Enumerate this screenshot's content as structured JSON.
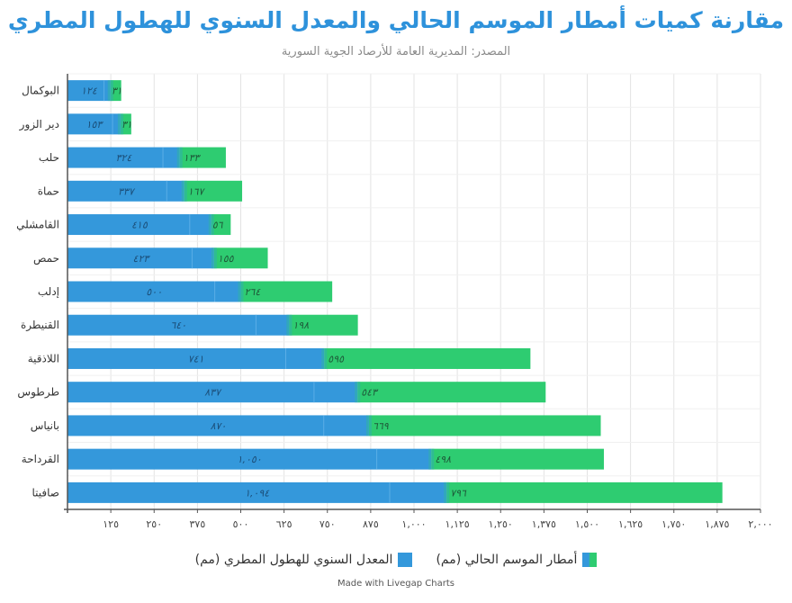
{
  "header": {
    "title": "مقارنة كميات أمطار الموسم الحالي والمعدل السنوي للهطول المطري",
    "subtitle": "المصدر: المديرية العامة للأرصاد الجوية السورية"
  },
  "legend": {
    "current_label": "أمطار الموسم الحالي (مم)",
    "average_label": "المعدل السنوي للهطول المطري (مم)"
  },
  "credit": "Made with Livegap Charts",
  "colors": {
    "current": "#2ecc71",
    "average": "#3498db",
    "title": "#2e92db",
    "grid": "#e3e3e3"
  },
  "chart_data": {
    "type": "bar",
    "orientation": "horizontal",
    "stacked": true,
    "categories": [
      "البوكمال",
      "دير الزور",
      "حلب",
      "حماة",
      "القامشلي",
      "حمص",
      "إدلب",
      "القنيطرة",
      "اللاذقية",
      "طرطوس",
      "بانياس",
      "القرداحة",
      "صافيتا"
    ],
    "series": [
      {
        "name": "المعدل السنوي للهطول المطري (مم)",
        "values": [
          124,
          153,
          324,
          337,
          415,
          423,
          500,
          640,
          741,
          837,
          870,
          1050,
          1094
        ],
        "labels": [
          "١٢٤",
          "١٥٣",
          "٣٢٤",
          "٣٣٧",
          "٤١٥",
          "٤٢٣",
          "٥٠٠",
          "٦٤٠",
          "٧٤١",
          "٨٣٧",
          "٨٧٠",
          "١,٠٥٠",
          "١,٠٩٤"
        ]
      },
      {
        "name": "أمطار الموسم الحالي (مم)",
        "values": [
          31,
          31,
          133,
          167,
          56,
          155,
          264,
          198,
          595,
          543,
          669,
          498,
          796
        ],
        "labels": [
          "٣١",
          "٣١",
          "١٣٣",
          "١٦٧",
          "٥٦",
          "١٥٥",
          "٢٦٤",
          "١٩٨",
          "٥٩٥",
          "٥٤٣",
          "٦٦٩",
          "٤٩٨",
          "٧٩٦"
        ]
      }
    ],
    "x_ticks": [
      125,
      250,
      375,
      500,
      625,
      750,
      875,
      1000,
      1125,
      1250,
      1375,
      1500,
      1625,
      1750,
      1875,
      2000
    ],
    "x_tick_labels": [
      "١٢٥",
      "٢٥٠",
      "٣٧٥",
      "٥٠٠",
      "٦٢٥",
      "٧٥٠",
      "٨٧٥",
      "١,٠٠٠",
      "١,١٢٥",
      "١,٢٥٠",
      "١,٣٧٥",
      "١,٥٠٠",
      "١,٦٢٥",
      "١,٧٥٠",
      "١,٨٧٥",
      "٢,٠٠٠"
    ],
    "xlim": [
      0,
      2000
    ],
    "grid": true
  }
}
